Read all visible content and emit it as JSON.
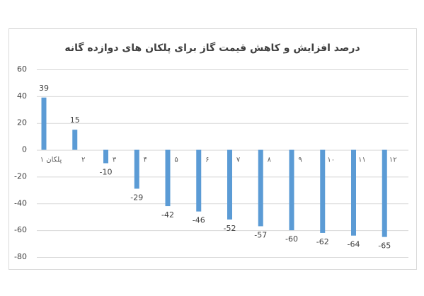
{
  "chart_data": {
    "type": "bar",
    "title": "درصد افزایش و کاهش قیمت گاز برای پلکان های دوازده گانه",
    "categories": [
      "پلکان ۱",
      "۲",
      "۳",
      "۴",
      "۵",
      "۶",
      "۷",
      "۸",
      "۹",
      "۱۰",
      "۱۱",
      "۱۲"
    ],
    "values": [
      39,
      15,
      -10,
      -29,
      -42,
      -46,
      -52,
      -57,
      -60,
      -62,
      -64,
      -65
    ],
    "color": "#5b9bd5",
    "ylim": [
      -80,
      60
    ],
    "yticks": [
      -80,
      -60,
      -40,
      -20,
      0,
      20,
      40,
      60
    ],
    "grid": true
  }
}
